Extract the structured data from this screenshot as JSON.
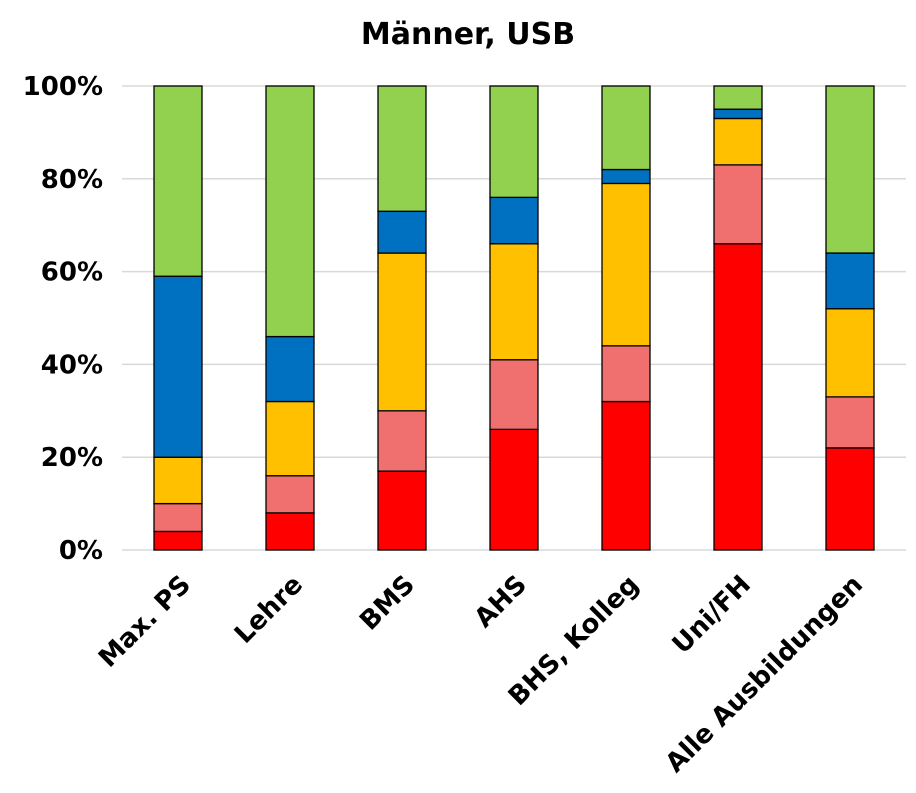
{
  "chart_data": {
    "type": "bar",
    "stacked": true,
    "title": "Männer, USB",
    "xlabel": "",
    "ylabel": "",
    "ylim": [
      0,
      100
    ],
    "yticks": [
      "0%",
      "20%",
      "40%",
      "60%",
      "80%",
      "100%"
    ],
    "grid": true,
    "legend": "none",
    "categories": [
      "Max. PS",
      "Lehre",
      "BMS",
      "AHS",
      "BHS, Kolleg",
      "Uni/FH",
      "Alle Ausbildungen"
    ],
    "series": [
      {
        "color": "#ff0000",
        "values": [
          4,
          8,
          17,
          26,
          32,
          66,
          22
        ]
      },
      {
        "color": "#f07070",
        "values": [
          6,
          8,
          13,
          15,
          12,
          17,
          11
        ]
      },
      {
        "color": "#ffc000",
        "values": [
          10,
          16,
          34,
          25,
          35,
          10,
          19
        ]
      },
      {
        "color": "#0070c0",
        "values": [
          39,
          14,
          9,
          10,
          3,
          2,
          12
        ]
      },
      {
        "color": "#92d050",
        "values": [
          41,
          54,
          27,
          24,
          18,
          5,
          36
        ]
      }
    ]
  }
}
